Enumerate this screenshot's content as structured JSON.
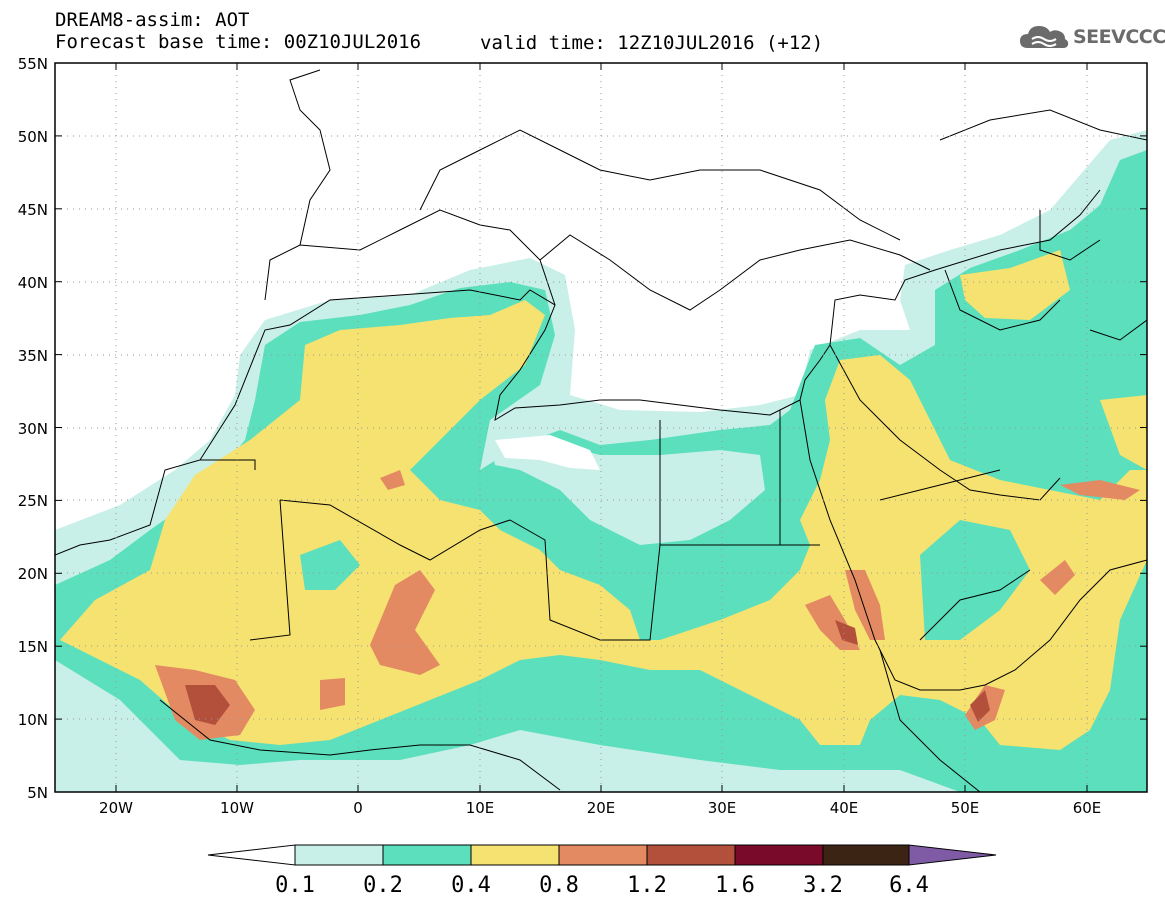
{
  "header": {
    "line1": "DREAM8-assim: AOT",
    "base_time": "Forecast base time: 00Z10JUL2016",
    "valid_time": "valid time: 12Z10JUL2016 (+12)"
  },
  "logo": {
    "text": "SEEVCCC",
    "icon": "cloud-icon",
    "color": "#6b6b6b"
  },
  "map": {
    "lat_labels": [
      "55N",
      "50N",
      "45N",
      "40N",
      "35N",
      "30N",
      "25N",
      "20N",
      "15N",
      "10N",
      "5N"
    ],
    "lon_labels": [
      "20W",
      "10W",
      "0",
      "10E",
      "20E",
      "30E",
      "40E",
      "50E",
      "60E"
    ],
    "lat_range": [
      5,
      55
    ],
    "lon_range": [
      -25,
      65
    ]
  },
  "colorbar": {
    "labels": [
      "0.1",
      "0.2",
      "0.4",
      "0.8",
      "1.2",
      "1.6",
      "3.2",
      "6.4"
    ],
    "colors": [
      "#ffffff",
      "#c8efe8",
      "#5cdfbc",
      "#f5e271",
      "#e48a62",
      "#b3503c",
      "#7a0a2a",
      "#3c2415",
      "#7f5ba6"
    ]
  }
}
